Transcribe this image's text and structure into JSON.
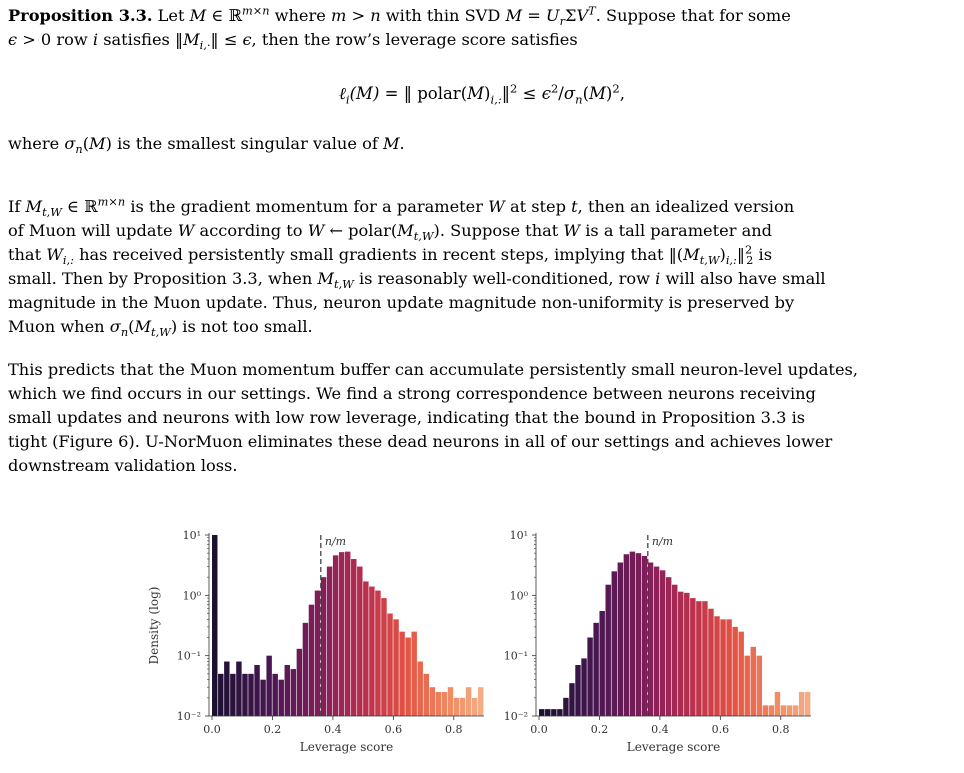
{
  "proposition": {
    "label": "Proposition 3.3.",
    "line1_a": "Let ",
    "line1_b": " where ",
    "line1_c": " with thin SVD ",
    "line1_d": ". Suppose that for some",
    "line2_a": " row ",
    "line2_b": " satisfies ",
    "line2_c": ", then the row’s leverage score satisfies",
    "display": "ℓ(M) = ‖ polar(M)‖² ≤ ε²/σ(M)²,",
    "where_a": "where ",
    "where_b": " is the smallest singular value of "
  },
  "paragraphs": {
    "p1_l1_a": "If ",
    "p1_l1_b": " is the gradient momentum for a parameter ",
    "p1_l1_c": " at step ",
    "p1_l1_d": ", then an idealized version",
    "p1_l2_a": "of Muon will update ",
    "p1_l2_b": " according to ",
    "p1_l2_c": ". Suppose that ",
    "p1_l2_d": " is a tall parameter and",
    "p1_l3_a": "that ",
    "p1_l3_b": " has received persistently small gradients in recent steps, implying that ",
    "p1_l3_c": " is",
    "p1_l4_a": "small. Then by Proposition 3.3, when ",
    "p1_l4_b": " is reasonably well-conditioned, row ",
    "p1_l4_c": " will also have small",
    "p1_l5": "magnitude in the Muon update. Thus, neuron update magnitude non-uniformity is preserved by",
    "p1_l6_a": "Muon when ",
    "p1_l6_b": " is not too small.",
    "p2_l1": "This predicts that the Muon momentum buffer can accumulate persistently small neuron-level updates,",
    "p2_l2": "which we find occurs in our settings. We find a strong correspondence between neurons receiving",
    "p2_l3": "small updates and neurons with low row leverage, indicating that the bound in Proposition 3.3 is",
    "p2_l4": "tight (Figure 6). U-NorMuon eliminates these dead neurons in all of our settings and achieves lower",
    "p2_l5": "downstream validation loss."
  },
  "chart_data": [
    {
      "type": "bar",
      "xlabel": "Leverage score",
      "ylabel": "Density (log)",
      "xlim": [
        -0.01,
        0.9
      ],
      "ylim_log10": [
        -2,
        1
      ],
      "xticks": [
        "0.0",
        "0.2",
        "0.4",
        "0.6",
        "0.8"
      ],
      "yticks": [
        "10⁻²",
        "10⁻¹",
        "10⁰",
        "10¹"
      ],
      "reference_line": {
        "x": 0.36,
        "label": "n/m"
      },
      "bin_width": 0.02,
      "x": [
        0.0,
        0.02,
        0.04,
        0.06,
        0.08,
        0.1,
        0.12,
        0.14,
        0.16,
        0.18,
        0.2,
        0.22,
        0.24,
        0.26,
        0.28,
        0.3,
        0.32,
        0.34,
        0.36,
        0.38,
        0.4,
        0.42,
        0.44,
        0.46,
        0.48,
        0.5,
        0.52,
        0.54,
        0.56,
        0.58,
        0.6,
        0.62,
        0.64,
        0.66,
        0.68,
        0.7,
        0.72,
        0.74,
        0.76,
        0.78,
        0.8,
        0.82,
        0.84,
        0.86,
        0.88
      ],
      "values": [
        10,
        0.05,
        0.08,
        0.05,
        0.08,
        0.05,
        0.05,
        0.07,
        0.04,
        0.1,
        0.05,
        0.04,
        0.07,
        0.06,
        0.13,
        0.35,
        0.7,
        1.2,
        2,
        3,
        4.6,
        5.2,
        5.3,
        4,
        3,
        1.7,
        1.4,
        1.2,
        0.9,
        0.5,
        0.4,
        0.25,
        0.2,
        0.25,
        0.08,
        0.05,
        0.03,
        0.025,
        0.025,
        0.03,
        0.02,
        0.02,
        0.03,
        0.02,
        0.03
      ]
    },
    {
      "type": "bar",
      "xlabel": "Leverage score",
      "ylabel": "",
      "xlim": [
        -0.01,
        0.9
      ],
      "ylim_log10": [
        -2,
        1
      ],
      "xticks": [
        "0.0",
        "0.2",
        "0.4",
        "0.6",
        "0.8"
      ],
      "yticks": [
        "10⁻²",
        "10⁻¹",
        "10⁰",
        "10¹"
      ],
      "reference_line": {
        "x": 0.36,
        "label": "n/m"
      },
      "bin_width": 0.02,
      "x": [
        0.0,
        0.02,
        0.04,
        0.06,
        0.08,
        0.1,
        0.12,
        0.14,
        0.16,
        0.18,
        0.2,
        0.22,
        0.24,
        0.26,
        0.28,
        0.3,
        0.32,
        0.34,
        0.36,
        0.38,
        0.4,
        0.42,
        0.44,
        0.46,
        0.48,
        0.5,
        0.52,
        0.54,
        0.56,
        0.58,
        0.6,
        0.62,
        0.64,
        0.66,
        0.68,
        0.7,
        0.72,
        0.74,
        0.76,
        0.78,
        0.8,
        0.82,
        0.84,
        0.86,
        0.88
      ],
      "values": [
        0.013,
        0.013,
        0.013,
        0.013,
        0.02,
        0.035,
        0.07,
        0.09,
        0.2,
        0.35,
        0.55,
        1.5,
        2.5,
        3.5,
        4.8,
        5.3,
        5,
        4.5,
        3.5,
        3,
        2.6,
        2,
        1.5,
        1.15,
        1.1,
        0.9,
        0.8,
        0.8,
        0.6,
        0.45,
        0.4,
        0.4,
        0.3,
        0.25,
        0.1,
        0.14,
        0.1,
        0.015,
        0.015,
        0.025,
        0.015,
        0.015,
        0.015,
        0.025,
        0.025
      ]
    }
  ]
}
